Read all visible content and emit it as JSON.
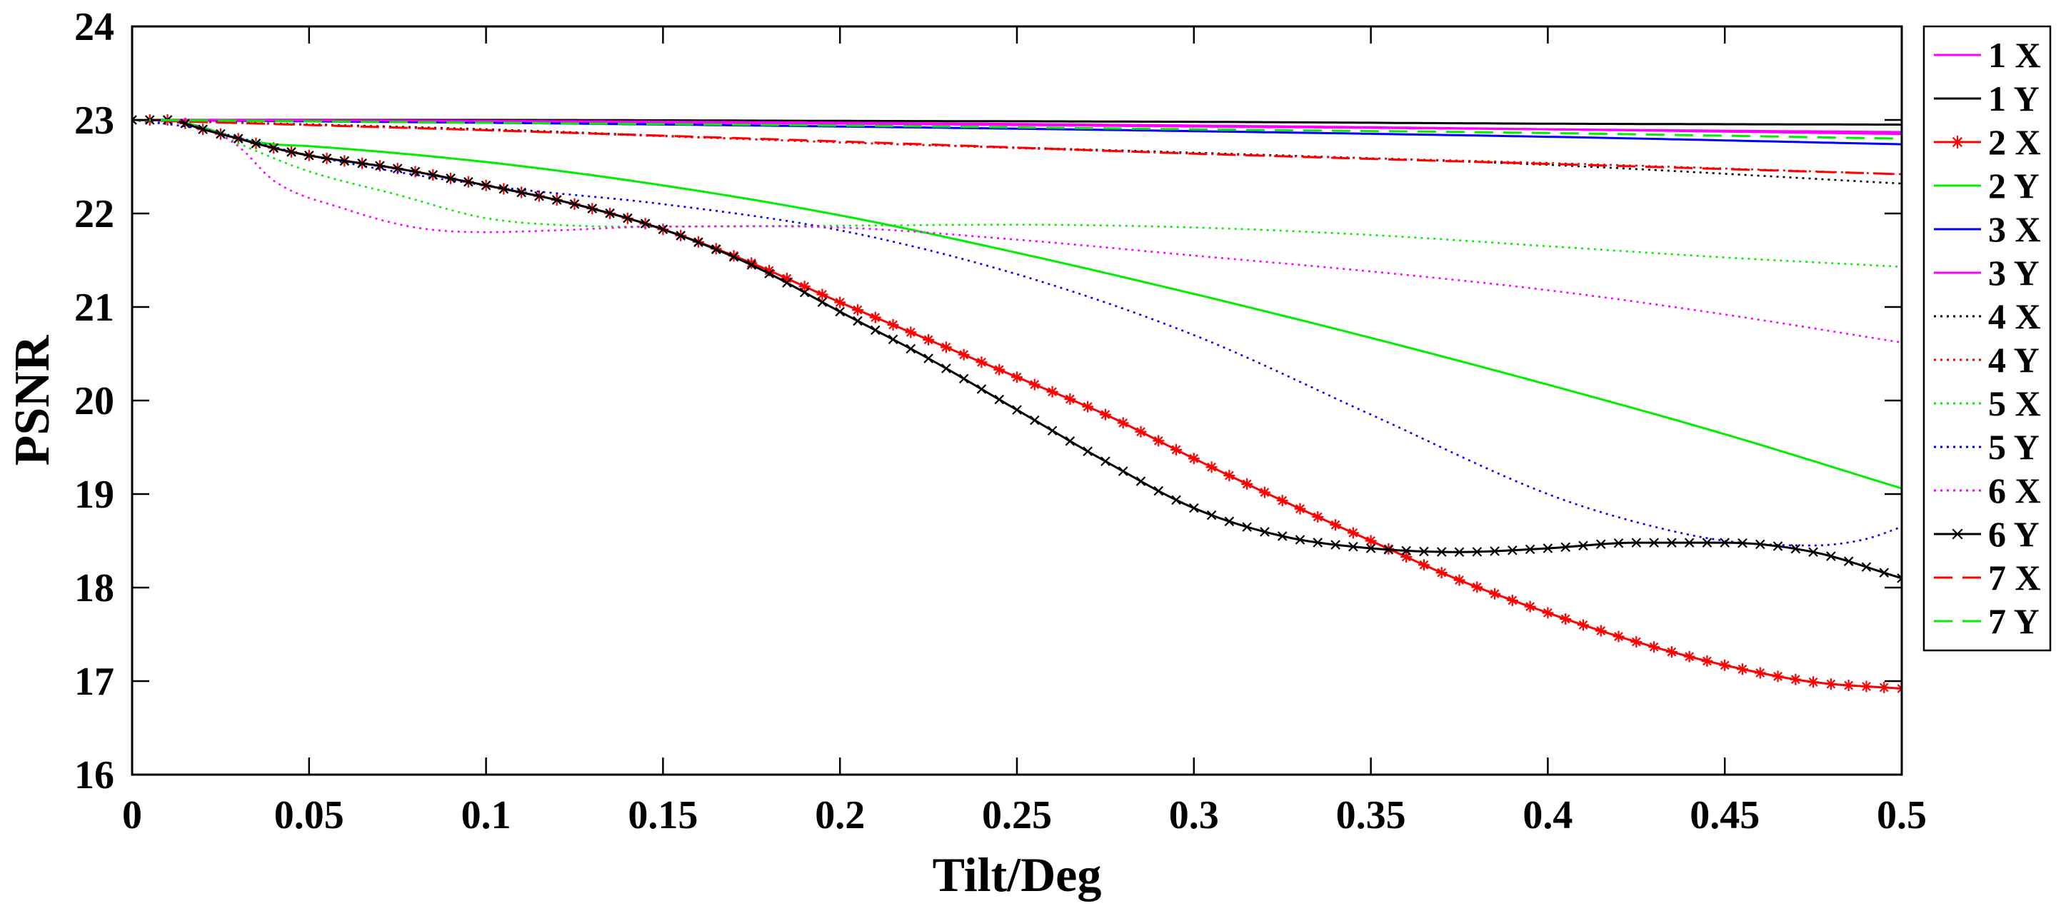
{
  "chart_data": {
    "type": "line",
    "title": "",
    "xlabel": "Tilt/Deg",
    "ylabel": "PSNR",
    "xlim": [
      0,
      0.5
    ],
    "ylim": [
      16,
      24
    ],
    "xticks": [
      0,
      0.05,
      0.1,
      0.15,
      0.2,
      0.25,
      0.3,
      0.35,
      0.4,
      0.45,
      0.5
    ],
    "xtick_labels": [
      "0",
      "0.05",
      "0.1",
      "0.15",
      "0.2",
      "0.25",
      "0.3",
      "0.35",
      "0.4",
      "0.45",
      "0.5"
    ],
    "yticks": [
      16,
      17,
      18,
      19,
      20,
      21,
      22,
      23,
      24
    ],
    "ytick_labels": [
      "16",
      "17",
      "18",
      "19",
      "20",
      "21",
      "22",
      "23",
      "24"
    ],
    "grid": false,
    "legend_position": "outside-right",
    "series": [
      {
        "name": "1 X",
        "color": "#ff00ff",
        "dash": "solid",
        "marker": "none",
        "x": [
          0,
          0.1,
          0.2,
          0.3,
          0.4,
          0.5
        ],
        "y": [
          23.0,
          22.98,
          22.96,
          22.93,
          22.9,
          22.87
        ]
      },
      {
        "name": "1 Y",
        "color": "#000000",
        "dash": "solid",
        "marker": "none",
        "x": [
          0,
          0.1,
          0.2,
          0.3,
          0.4,
          0.5
        ],
        "y": [
          23.0,
          23.0,
          22.99,
          22.98,
          22.96,
          22.95
        ]
      },
      {
        "name": "2 X",
        "color": "#ff0000",
        "dash": "solid",
        "marker": "star",
        "x": [
          0,
          0.01,
          0.02,
          0.03,
          0.04,
          0.05,
          0.075,
          0.1,
          0.125,
          0.15,
          0.175,
          0.2,
          0.225,
          0.25,
          0.275,
          0.3,
          0.325,
          0.35,
          0.375,
          0.4,
          0.425,
          0.45,
          0.475,
          0.5
        ],
        "y": [
          23.0,
          23.0,
          22.9,
          22.8,
          22.7,
          22.62,
          22.48,
          22.3,
          22.1,
          21.83,
          21.47,
          21.05,
          20.65,
          20.25,
          19.85,
          19.38,
          18.93,
          18.5,
          18.08,
          17.73,
          17.42,
          17.17,
          16.99,
          16.92
        ]
      },
      {
        "name": "2 Y",
        "color": "#00ee00",
        "dash": "solid",
        "marker": "none",
        "x": [
          0,
          0.01,
          0.02,
          0.03,
          0.04,
          0.05,
          0.1,
          0.15,
          0.2,
          0.25,
          0.3,
          0.35,
          0.4,
          0.45,
          0.5
        ],
        "y": [
          23.0,
          23.0,
          22.92,
          22.8,
          22.74,
          22.72,
          22.55,
          22.3,
          21.98,
          21.58,
          21.14,
          20.67,
          20.17,
          19.64,
          19.06
        ]
      },
      {
        "name": "3 X",
        "color": "#0000ff",
        "dash": "solid",
        "marker": "none",
        "x": [
          0,
          0.1,
          0.2,
          0.3,
          0.4,
          0.5
        ],
        "y": [
          23.0,
          22.97,
          22.93,
          22.88,
          22.82,
          22.74
        ]
      },
      {
        "name": "3 Y",
        "color": "#ff00ff",
        "dash": "solid",
        "marker": "none",
        "x": [
          0,
          0.1,
          0.2,
          0.3,
          0.4,
          0.5
        ],
        "y": [
          23.0,
          22.99,
          22.97,
          22.94,
          22.9,
          22.85
        ]
      },
      {
        "name": "4 X",
        "color": "#000000",
        "dash": "dotted",
        "marker": "none",
        "x": [
          0,
          0.1,
          0.2,
          0.3,
          0.4,
          0.5
        ],
        "y": [
          23.0,
          22.9,
          22.76,
          22.65,
          22.52,
          22.32
        ]
      },
      {
        "name": "4 Y",
        "color": "#ff0000",
        "dash": "dotted",
        "marker": "none",
        "x": [
          0,
          0.1,
          0.2,
          0.3,
          0.4,
          0.5
        ],
        "y": [
          23.0,
          22.89,
          22.76,
          22.64,
          22.54,
          22.42
        ]
      },
      {
        "name": "5 X",
        "color": "#00ee00",
        "dash": "dotted",
        "marker": "none",
        "x": [
          0,
          0.02,
          0.03,
          0.05,
          0.075,
          0.1,
          0.125,
          0.15,
          0.2,
          0.25,
          0.3,
          0.35,
          0.4,
          0.45,
          0.5
        ],
        "y": [
          23.0,
          22.92,
          22.75,
          22.45,
          22.2,
          21.95,
          21.87,
          21.86,
          21.87,
          21.88,
          21.85,
          21.77,
          21.65,
          21.53,
          21.43
        ]
      },
      {
        "name": "5 Y",
        "color": "#0000ff",
        "dash": "dotted",
        "marker": "none",
        "x": [
          0,
          0.02,
          0.05,
          0.1,
          0.15,
          0.2,
          0.25,
          0.3,
          0.35,
          0.4,
          0.425,
          0.45,
          0.475,
          0.49,
          0.5
        ],
        "y": [
          23.0,
          22.9,
          22.62,
          22.3,
          22.1,
          21.82,
          21.35,
          20.7,
          19.85,
          19.0,
          18.7,
          18.5,
          18.45,
          18.52,
          18.65
        ]
      },
      {
        "name": "6 X",
        "color": "#ff00ff",
        "dash": "dotted",
        "marker": "none",
        "x": [
          0,
          0.02,
          0.03,
          0.04,
          0.06,
          0.08,
          0.1,
          0.12,
          0.15,
          0.2,
          0.25,
          0.3,
          0.35,
          0.4,
          0.45,
          0.5
        ],
        "y": [
          23.0,
          22.92,
          22.72,
          22.35,
          22.05,
          21.85,
          21.8,
          21.82,
          21.86,
          21.85,
          21.72,
          21.55,
          21.38,
          21.18,
          20.92,
          20.62
        ]
      },
      {
        "name": "6 Y",
        "color": "#000000",
        "dash": "solid",
        "marker": "x",
        "x": [
          0,
          0.01,
          0.02,
          0.03,
          0.04,
          0.05,
          0.075,
          0.1,
          0.125,
          0.15,
          0.175,
          0.2,
          0.225,
          0.25,
          0.275,
          0.3,
          0.325,
          0.35,
          0.375,
          0.4,
          0.425,
          0.45,
          0.475,
          0.5
        ],
        "y": [
          23.0,
          23.0,
          22.9,
          22.8,
          22.7,
          22.62,
          22.48,
          22.3,
          22.1,
          21.83,
          21.45,
          20.95,
          20.45,
          19.9,
          19.35,
          18.85,
          18.55,
          18.42,
          18.38,
          18.42,
          18.48,
          18.48,
          18.38,
          18.1
        ]
      },
      {
        "name": "7 X",
        "color": "#ff0000",
        "dash": "dashed",
        "marker": "none",
        "x": [
          0,
          0.1,
          0.2,
          0.3,
          0.4,
          0.5
        ],
        "y": [
          23.0,
          22.89,
          22.77,
          22.64,
          22.53,
          22.42
        ]
      },
      {
        "name": "7 Y",
        "color": "#00ee00",
        "dash": "dashed",
        "marker": "none",
        "x": [
          0,
          0.1,
          0.2,
          0.3,
          0.4,
          0.5
        ],
        "y": [
          23.0,
          22.97,
          22.94,
          22.9,
          22.86,
          22.8
        ]
      }
    ]
  }
}
